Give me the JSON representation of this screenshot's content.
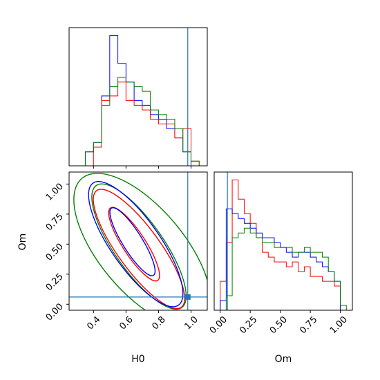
{
  "chart_data": [
    {
      "type": "histogram",
      "panel": "H0 marginal",
      "xlim": [
        0.25,
        1.1
      ],
      "yaxis": "hidden",
      "truth": 0.98,
      "colors": {
        "blue": "#0000ff",
        "red": "#ff0000",
        "green": "#008000",
        "truth": "#1f77b4"
      },
      "bin_edges": [
        0.35,
        0.4,
        0.45,
        0.5,
        0.55,
        0.6,
        0.65,
        0.7,
        0.75,
        0.8,
        0.85,
        0.9,
        0.95,
        1.0,
        1.05
      ],
      "series": [
        {
          "color": "blue",
          "counts": [
            3,
            5,
            15,
            28,
            22,
            18,
            14,
            13,
            11,
            10,
            8,
            6,
            3,
            0
          ]
        },
        {
          "color": "red",
          "counts": [
            0,
            4,
            14,
            15,
            18,
            14,
            13,
            12,
            10,
            9,
            9,
            6,
            8,
            1
          ]
        },
        {
          "color": "green",
          "counts": [
            3,
            5,
            13,
            17,
            19,
            18,
            17,
            16,
            12,
            11,
            10,
            8,
            3,
            1
          ]
        }
      ]
    },
    {
      "type": "contour",
      "panel": "H0 vs Om",
      "xlabel": "H0",
      "ylabel": "Om",
      "xlim": [
        0.25,
        1.1
      ],
      "ylim": [
        -0.05,
        1.1
      ],
      "xticks": [
        {
          "value": 0.4,
          "label": "0.4"
        },
        {
          "value": 0.6,
          "label": "0.6"
        },
        {
          "value": 0.8,
          "label": "0.8"
        },
        {
          "value": 1.0,
          "label": "1.0"
        }
      ],
      "yticks": [
        {
          "value": 0.0,
          "label": "0.00"
        },
        {
          "value": 0.25,
          "label": "0.25"
        },
        {
          "value": 0.5,
          "label": "0.50"
        },
        {
          "value": 0.75,
          "label": "0.75"
        },
        {
          "value": 1.0,
          "label": "1.00"
        }
      ],
      "truth": {
        "x": 0.98,
        "y": 0.06
      },
      "series": [
        {
          "color": "green",
          "levels": [
            {
              "cx": 0.68,
              "cy": 0.48,
              "rx": 0.15,
              "ry": 0.62,
              "angle": 35
            },
            {
              "cx": 0.7,
              "cy": 0.45,
              "rx": 0.26,
              "ry": 0.78,
              "angle": 40
            }
          ]
        },
        {
          "color": "red",
          "levels": [
            {
              "cx": 0.65,
              "cy": 0.5,
              "rx": 0.07,
              "ry": 0.36,
              "angle": 33
            },
            {
              "cx": 0.68,
              "cy": 0.46,
              "rx": 0.13,
              "ry": 0.6,
              "angle": 36
            }
          ]
        },
        {
          "color": "blue",
          "levels": [
            {
              "cx": 0.64,
              "cy": 0.52,
              "rx": 0.06,
              "ry": 0.33,
              "angle": 32
            },
            {
              "cx": 0.66,
              "cy": 0.5,
              "rx": 0.15,
              "ry": 0.62,
              "angle": 35
            }
          ]
        }
      ]
    },
    {
      "type": "histogram",
      "panel": "Om marginal",
      "xlabel": "Om",
      "xlim": [
        -0.05,
        1.1
      ],
      "yaxis": "hidden",
      "truth": 0.06,
      "xticks": [
        {
          "value": 0.0,
          "label": "0.00"
        },
        {
          "value": 0.25,
          "label": "0.25"
        },
        {
          "value": 0.5,
          "label": "0.50"
        },
        {
          "value": 0.75,
          "label": "0.75"
        },
        {
          "value": 1.0,
          "label": "1.00"
        }
      ],
      "bin_edges": [
        0.0,
        0.05,
        0.1,
        0.15,
        0.2,
        0.25,
        0.3,
        0.35,
        0.4,
        0.45,
        0.5,
        0.55,
        0.6,
        0.65,
        0.7,
        0.75,
        0.8,
        0.85,
        0.9,
        0.95,
        1.0,
        1.05
      ],
      "series": [
        {
          "color": "red",
          "counts": [
            6,
            14,
            27,
            23,
            20,
            18,
            15,
            12,
            11,
            10,
            10,
            9,
            10,
            8,
            9,
            7,
            7,
            6,
            6,
            5,
            0
          ]
        },
        {
          "color": "blue",
          "counts": [
            2,
            21,
            20,
            19,
            18,
            17,
            16,
            15,
            15,
            14,
            13,
            12,
            11,
            12,
            12,
            11,
            10,
            9,
            8,
            6,
            0
          ]
        },
        {
          "color": "green",
          "counts": [
            0,
            3,
            15,
            16,
            17,
            16,
            15,
            14,
            14,
            13,
            13,
            13,
            12,
            12,
            13,
            12,
            12,
            11,
            8,
            6,
            1
          ]
        }
      ]
    }
  ]
}
